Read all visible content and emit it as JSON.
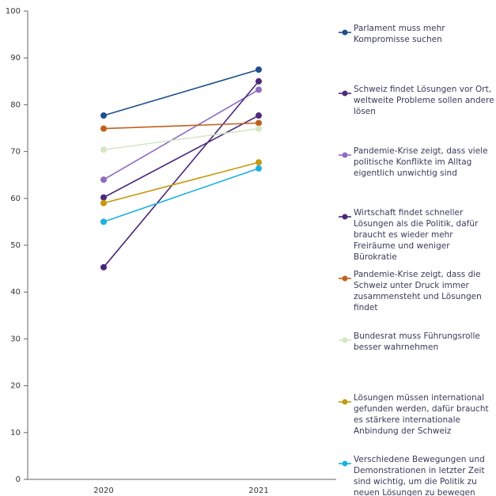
{
  "chart_data": {
    "type": "line",
    "categories": [
      "2020",
      "2021"
    ],
    "ylim": [
      0,
      100
    ],
    "yticks": [
      0,
      10,
      20,
      30,
      40,
      50,
      60,
      70,
      80,
      90,
      100
    ],
    "series": [
      {
        "name": "Parlament muss mehr Kompromisse suchen",
        "color": "#1f4e8c",
        "values": [
          77.7,
          87.5
        ]
      },
      {
        "name": "Schweiz findet Lösungen vor Ort, weltweite Probleme sollen andere lösen",
        "color": "#4b2c7a",
        "values": [
          60.2,
          77.7
        ]
      },
      {
        "name": "Pandemie-Krise zeigt, dass viele politische Konflikte im Alltag eigentlich unwichtig sind",
        "color": "#8e6bc4",
        "values": [
          64.0,
          83.2
        ]
      },
      {
        "name": "Wirtschaft findet schneller Lösungen als die Politik, dafür braucht es wieder mehr Freiräume und weniger Bürokratie",
        "color": "#4a2878",
        "values": [
          45.3,
          85.0
        ]
      },
      {
        "name": "Pandemie-Krise zeigt, dass die Schweiz unter Druck immer zusammensteht und Lösungen findet",
        "color": "#c0601e",
        "values": [
          74.9,
          76.1
        ]
      },
      {
        "name": "Bundesrat muss Führungsrolle besser wahrnehmen",
        "color": "#d4e6c3",
        "values": [
          70.4,
          74.9
        ]
      },
      {
        "name": "Lösungen müssen international gefunden werden, dafür braucht es stärkere internationale Anbindung der Schweiz",
        "color": "#c49a10",
        "values": [
          59.0,
          67.7
        ]
      },
      {
        "name": "Verschiedene Bewegungen und Demonstrationen in letzter Zeit sind wichtig, um die Politik zu neuen Lösungen zu bewegen",
        "color": "#1ab0e0",
        "values": [
          55.0,
          66.4
        ]
      }
    ]
  }
}
